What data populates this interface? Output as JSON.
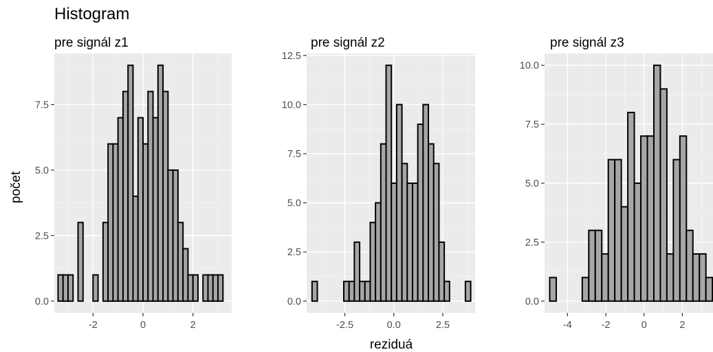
{
  "title": "Histogram",
  "ylabel": "počet",
  "xlabel": "reziduá",
  "chart_data": [
    {
      "type": "bar",
      "subtitle": "pre signál z1",
      "bin_width": 0.2,
      "bin_centers": [
        -3.3,
        -3.1,
        -2.9,
        -2.7,
        -2.5,
        -2.3,
        -2.1,
        -1.9,
        -1.7,
        -1.5,
        -1.3,
        -1.1,
        -0.9,
        -0.7,
        -0.5,
        -0.3,
        -0.1,
        0.1,
        0.3,
        0.5,
        0.7,
        0.9,
        1.1,
        1.3,
        1.5,
        1.7,
        1.9,
        2.1,
        2.3,
        2.5,
        2.7,
        2.9,
        3.1
      ],
      "values": [
        1,
        1,
        1,
        0,
        3,
        0,
        0,
        1,
        0,
        3,
        6,
        6,
        7,
        8,
        9,
        4,
        7,
        6,
        8,
        7,
        9,
        8,
        5,
        5,
        3,
        2,
        1,
        1,
        0,
        1,
        1,
        1,
        1
      ],
      "xlim": [
        -3.55,
        3.55
      ],
      "ylim": [
        -0.45,
        9.45
      ],
      "xticks": [
        -2,
        0,
        2
      ],
      "yticks": [
        0.0,
        2.5,
        5.0,
        7.5
      ],
      "ytick_labels": [
        "0.0",
        "2.5",
        "5.0",
        "7.5"
      ]
    },
    {
      "type": "bar",
      "subtitle": "pre signál z2",
      "bin_width": 0.27,
      "bin_centers": [
        -4.04,
        -3.77,
        -3.5,
        -3.23,
        -2.96,
        -2.69,
        -2.42,
        -2.15,
        -1.88,
        -1.61,
        -1.34,
        -1.07,
        -0.8,
        -0.53,
        -0.26,
        0.01,
        0.28,
        0.55,
        0.82,
        1.09,
        1.36,
        1.63,
        1.9,
        2.17,
        2.44,
        2.71,
        2.98,
        3.25,
        3.52,
        3.79
      ],
      "values": [
        1,
        0,
        0,
        0,
        0,
        0,
        1,
        1,
        3,
        1,
        1,
        4,
        5,
        8,
        12,
        6,
        10,
        7,
        6,
        6,
        9,
        10,
        8,
        7,
        3,
        1,
        0,
        0,
        0,
        1
      ],
      "xlim": [
        -4.45,
        4.15
      ],
      "ylim": [
        -0.6,
        12.6
      ],
      "xticks": [
        -2.5,
        0.0,
        2.5
      ],
      "xtick_labels": [
        "-2.5",
        "0.0",
        "2.5"
      ],
      "yticks": [
        0.0,
        2.5,
        5.0,
        7.5,
        10.0,
        12.5
      ],
      "ytick_labels": [
        "0.0",
        "2.5",
        "5.0",
        "7.5",
        "10.0",
        "12.5"
      ]
    },
    {
      "type": "bar",
      "subtitle": "pre signál z3",
      "bin_width": 0.34,
      "bin_centers": [
        -4.76,
        -4.42,
        -4.08,
        -3.74,
        -3.4,
        -3.06,
        -2.72,
        -2.38,
        -2.04,
        -1.7,
        -1.36,
        -1.02,
        -0.68,
        -0.34,
        0.0,
        0.34,
        0.68,
        1.02,
        1.36,
        1.7,
        2.04,
        2.38,
        2.72,
        3.06,
        3.4
      ],
      "values": [
        1,
        0,
        0,
        0,
        0,
        1,
        3,
        3,
        2,
        6,
        6,
        4,
        8,
        5,
        7,
        7,
        10,
        9,
        2,
        6,
        7,
        3,
        2,
        2,
        1
      ],
      "xlim": [
        -5.2,
        3.6
      ],
      "ylim": [
        -0.5,
        10.5
      ],
      "xticks": [
        -4,
        -2,
        0,
        2
      ],
      "yticks": [
        0.0,
        2.5,
        5.0,
        7.5,
        10.0
      ],
      "ytick_labels": [
        "0.0",
        "2.5",
        "5.0",
        "7.5",
        "10.0"
      ]
    }
  ]
}
